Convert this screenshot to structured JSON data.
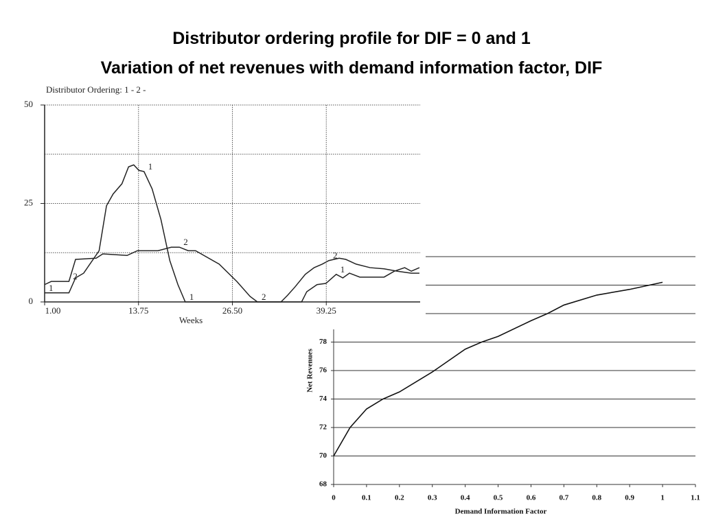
{
  "slide": {
    "title_lines": [
      "Distributor ordering profile for DIF = 0 and 1",
      "Variation of net revenues with demand information factor, DIF"
    ]
  },
  "chart_data": [
    {
      "type": "line",
      "title": "Distributor Ordering: 1 - 2 -",
      "x_label": "Weeks",
      "xlim": [
        1,
        52
      ],
      "xticks": [
        {
          "value": 1,
          "label": "1.00"
        },
        {
          "value": 13.75,
          "label": "13.75"
        },
        {
          "value": 26.5,
          "label": "26.50"
        },
        {
          "value": 39.25,
          "label": "39.25"
        }
      ],
      "ylim": [
        0,
        50
      ],
      "yticks": [
        0,
        25,
        50
      ],
      "y_grid": [
        12.5,
        25,
        37.5,
        50
      ],
      "grid": true,
      "series": [
        {
          "name": "1",
          "color": "#222222",
          "x": [
            1,
            4.3,
            5.2,
            6.3,
            8.4,
            9.4,
            10.3,
            11.5,
            12.4,
            13.1,
            13.8,
            14.5,
            15.6,
            16.8,
            18,
            19.1,
            20.1,
            35.9,
            36.6,
            38,
            39.2,
            40.6,
            41.5,
            42.4,
            43.8,
            47.1,
            48.5,
            49.9,
            50.8,
            51.9
          ],
          "values": [
            2.3,
            2.3,
            6.1,
            7.3,
            13,
            24.4,
            27.4,
            30,
            34.3,
            34.8,
            33.4,
            33.1,
            28.7,
            20.9,
            10.5,
            4.4,
            0,
            0,
            2.6,
            4.4,
            4.7,
            7,
            6.1,
            7.3,
            6.3,
            6.3,
            7.8,
            8.7,
            7.8,
            8.7
          ]
        },
        {
          "name": "2",
          "color": "#222222",
          "x": [
            1,
            1.9,
            4.3,
            5.2,
            8,
            8.9,
            12.2,
            13.6,
            16.4,
            18.2,
            19.3,
            20.5,
            21.5,
            24.7,
            27.1,
            28.9,
            29.9,
            33.1,
            34,
            35,
            36.4,
            37.6,
            38.7,
            39.6,
            41,
            41.9,
            43.3,
            45.2,
            47.1,
            48.9,
            50.8,
            51.9
          ],
          "values": [
            4.4,
            5.2,
            5.2,
            10.8,
            11.1,
            12.2,
            11.8,
            13,
            13,
            13.9,
            13.9,
            13,
            13,
            9.6,
            5.2,
            1.4,
            0,
            0,
            1.7,
            3.8,
            7,
            8.7,
            9.6,
            10.5,
            11.1,
            10.8,
            9.6,
            8.7,
            8.4,
            7.8,
            7.3,
            7.3
          ]
        }
      ]
    },
    {
      "type": "line",
      "x_label": "Demand Information Factor",
      "y_label": "Net Revenues",
      "xlim": [
        0,
        1.1
      ],
      "xticks": [
        0,
        0.1,
        0.2,
        0.3,
        0.4,
        0.5,
        0.6,
        0.7,
        0.8,
        0.9,
        1,
        1.1
      ],
      "ylim": [
        68,
        84
      ],
      "yticks": [
        68,
        70,
        72,
        74,
        76,
        78
      ],
      "y_grid": [
        70,
        72,
        74,
        76,
        78,
        80,
        82,
        84
      ],
      "grid": true,
      "color": "#111111",
      "x": [
        0,
        0.05,
        0.1,
        0.15,
        0.2,
        0.3,
        0.4,
        0.45,
        0.5,
        0.6,
        0.65,
        0.7,
        0.8,
        0.9,
        1.0
      ],
      "values": [
        70,
        72,
        73.3,
        74,
        74.5,
        75.9,
        77.5,
        78,
        78.4,
        79.5,
        80,
        80.6,
        81.3,
        81.7,
        82.2
      ]
    }
  ]
}
